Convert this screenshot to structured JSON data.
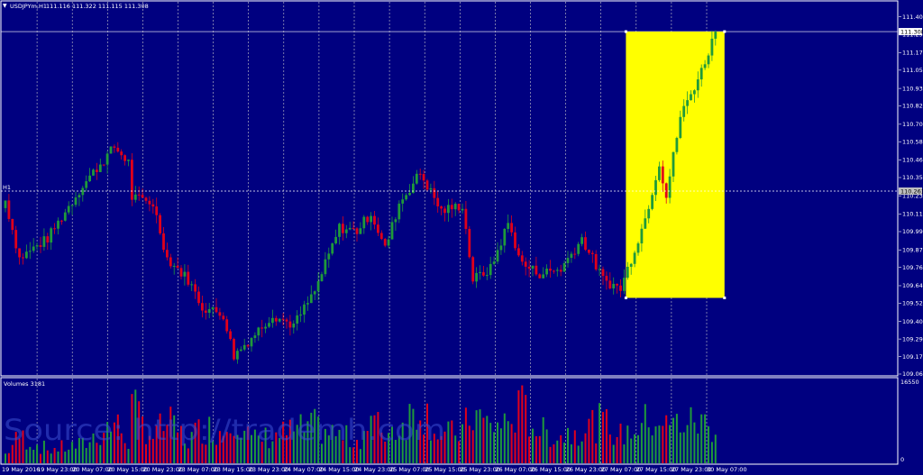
{
  "header": {
    "symbol": "USDJPYm,H1",
    "ohlc": "111.116 111.322 111.115 111.308"
  },
  "crosshair": {
    "tag": "H1",
    "price_label": "110.261",
    "price": 110.261
  },
  "current_price": {
    "label": "111.308",
    "value": 111.308
  },
  "volume_panel": {
    "title": "Volumes 3181",
    "scale_top": "16550",
    "scale_bottom": "0",
    "max": 16550
  },
  "watermark": "Source: http://trademh.com",
  "colors": {
    "background": "#000080",
    "bull": "#1f9a3a",
    "bear": "#e0001a",
    "highlight": "#ffff00",
    "grid": "#c8c8c8"
  },
  "chart_data": {
    "type": "candlestick",
    "ylim": [
      109.06,
      111.48
    ],
    "y_ticks": [
      "111.405",
      "111.290",
      "111.170",
      "111.055",
      "110.935",
      "110.820",
      "110.700",
      "110.585",
      "110.465",
      "110.350",
      "110.230",
      "110.110",
      "109.995",
      "109.875",
      "109.760",
      "109.640",
      "109.525",
      "109.405",
      "109.290",
      "109.175",
      "109.060"
    ],
    "x_ticks": [
      "19 May 2016",
      "19 May 23:00",
      "20 May 07:00",
      "20 May 15:00",
      "20 May 23:00",
      "23 May 07:00",
      "23 May 15:00",
      "23 May 23:00",
      "24 May 07:00",
      "24 May 15:00",
      "24 May 23:00",
      "25 May 07:00",
      "25 May 15:00",
      "25 May 23:00",
      "26 May 07:00",
      "26 May 15:00",
      "26 May 23:00",
      "27 May 07:00",
      "27 May 15:00",
      "27 May 23:00",
      "30 May 07:00"
    ],
    "highlight_range": {
      "from_index": 176,
      "to_index": 202,
      "price_low": 109.56,
      "price_high": 111.308
    },
    "anchors": [
      [
        0,
        110.2,
        2000
      ],
      [
        4,
        109.82,
        6000
      ],
      [
        12,
        109.95,
        3000
      ],
      [
        22,
        110.3,
        4000
      ],
      [
        31,
        110.55,
        9000
      ],
      [
        35,
        110.45,
        5000
      ],
      [
        36,
        110.22,
        12000
      ],
      [
        42,
        110.18,
        6000
      ],
      [
        46,
        109.82,
        9000
      ],
      [
        52,
        109.68,
        5000
      ],
      [
        56,
        109.5,
        8000
      ],
      [
        62,
        109.45,
        7000
      ],
      [
        65,
        109.18,
        12000
      ],
      [
        70,
        109.3,
        5000
      ],
      [
        76,
        109.45,
        6000
      ],
      [
        82,
        109.38,
        7000
      ],
      [
        88,
        109.6,
        8000
      ],
      [
        95,
        110.02,
        6000
      ],
      [
        100,
        110.0,
        5000
      ],
      [
        104,
        110.12,
        9000
      ],
      [
        108,
        109.88,
        7000
      ],
      [
        112,
        110.18,
        8000
      ],
      [
        118,
        110.38,
        13000
      ],
      [
        124,
        110.13,
        6000
      ],
      [
        130,
        110.17,
        7000
      ],
      [
        133,
        109.68,
        11000
      ],
      [
        138,
        109.75,
        8000
      ],
      [
        143,
        110.05,
        9000
      ],
      [
        147,
        109.78,
        12000
      ],
      [
        152,
        109.72,
        7000
      ],
      [
        158,
        109.75,
        6000
      ],
      [
        164,
        109.95,
        8000
      ],
      [
        170,
        109.68,
        9000
      ],
      [
        175,
        109.62,
        6000
      ],
      [
        182,
        110.08,
        9000
      ],
      [
        186,
        110.45,
        10000
      ],
      [
        188,
        110.23,
        8000
      ],
      [
        192,
        110.75,
        9000
      ],
      [
        198,
        111.05,
        9000
      ],
      [
        202,
        111.308,
        8000
      ]
    ]
  }
}
